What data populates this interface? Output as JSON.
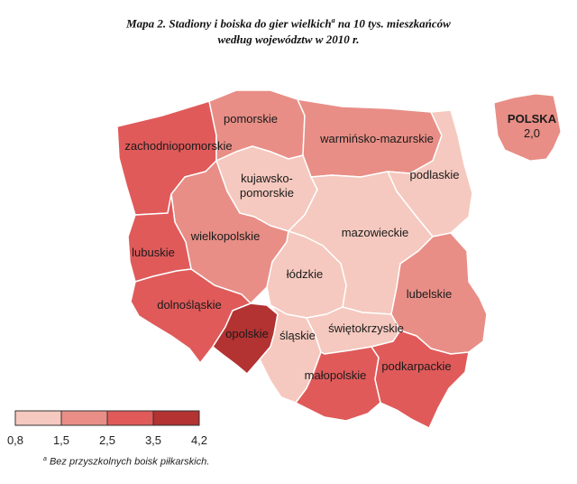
{
  "title": {
    "line1_prefix": "Mapa 2.  Stadiony i boiska do gier wielkich",
    "line1_sup": "a",
    "line1_suffix": " na 10 tys. mieszkańców",
    "line2": "według województw w 2010 r."
  },
  "colors": {
    "c1": "#f5c9bf",
    "c2": "#e88e86",
    "c3": "#e05a5a",
    "c4": "#b33232",
    "border": "#ffffff"
  },
  "national": {
    "label": "POLSKA",
    "value": "2,0",
    "color": "#e88e86"
  },
  "legend": {
    "ticks": [
      "0,8",
      "1,5",
      "2,5",
      "3,5",
      "4,2"
    ],
    "classes": [
      {
        "from": 0.8,
        "to": 1.5,
        "color": "#f5c9bf"
      },
      {
        "from": 1.5,
        "to": 2.5,
        "color": "#e88e86"
      },
      {
        "from": 2.5,
        "to": 3.5,
        "color": "#e05a5a"
      },
      {
        "from": 3.5,
        "to": 4.2,
        "color": "#b33232"
      }
    ]
  },
  "regions": [
    {
      "name": "pomorskie",
      "class": 2
    },
    {
      "name": "zachodniopomorskie",
      "class": 3
    },
    {
      "name": "warmińsko-mazurskie",
      "class": 2
    },
    {
      "name": "podlaskie",
      "class": 1
    },
    {
      "name": "kujawsko-pomorskie",
      "label_lines": [
        "kujawsko-",
        "pomorskie"
      ],
      "class": 1
    },
    {
      "name": "wielkopolskie",
      "class": 2
    },
    {
      "name": "lubuskie",
      "class": 3
    },
    {
      "name": "mazowieckie",
      "class": 1
    },
    {
      "name": "łódzkie",
      "class": 1
    },
    {
      "name": "lubelskie",
      "class": 2
    },
    {
      "name": "dolnośląskie",
      "class": 3
    },
    {
      "name": "opolskie",
      "class": 4
    },
    {
      "name": "śląskie",
      "class": 1
    },
    {
      "name": "świętokrzyskie",
      "class": 1
    },
    {
      "name": "małopolskie",
      "class": 3
    },
    {
      "name": "podkarpackie",
      "class": 3
    }
  ],
  "footnote": {
    "sup": "a",
    "text": " Bez przyszkolnych boisk piłkarskich."
  }
}
